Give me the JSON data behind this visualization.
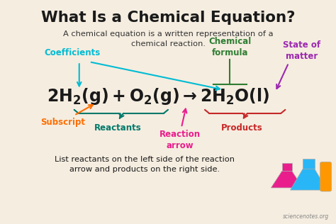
{
  "title": "What Is a Chemical Equation?",
  "subtitle": "A chemical equation is a written representation of a\nchemical reaction.",
  "bg_color": "#f5ede0",
  "title_color": "#1a1a1a",
  "subtitle_color": "#333333",
  "label_coefficients": "Coefficients",
  "label_chemical_formula": "Chemical\nformula",
  "label_state_of_matter": "State of\nmatter",
  "label_subscript": "Subscript",
  "label_reactants": "Reactants",
  "label_reaction_arrow": "Reaction\narrow",
  "label_products": "Products",
  "color_coefficients": "#00bcd4",
  "color_chemical_formula": "#2e7d32",
  "color_state_of_matter": "#9c27b0",
  "color_subscript": "#ff6d00",
  "color_reactants": "#00796b",
  "color_reaction_arrow": "#e91e8c",
  "color_products": "#c62828",
  "footer": "List reactants on the left side of the reaction\narrow and products on the right side.",
  "footer_color": "#1a1a1a",
  "watermark": "sciencenotes.org",
  "watermark_color": "#888888",
  "color_pink_flask": "#e91e8c",
  "color_blue_flask": "#29b6f6",
  "color_orange_tube": "#ff9800"
}
